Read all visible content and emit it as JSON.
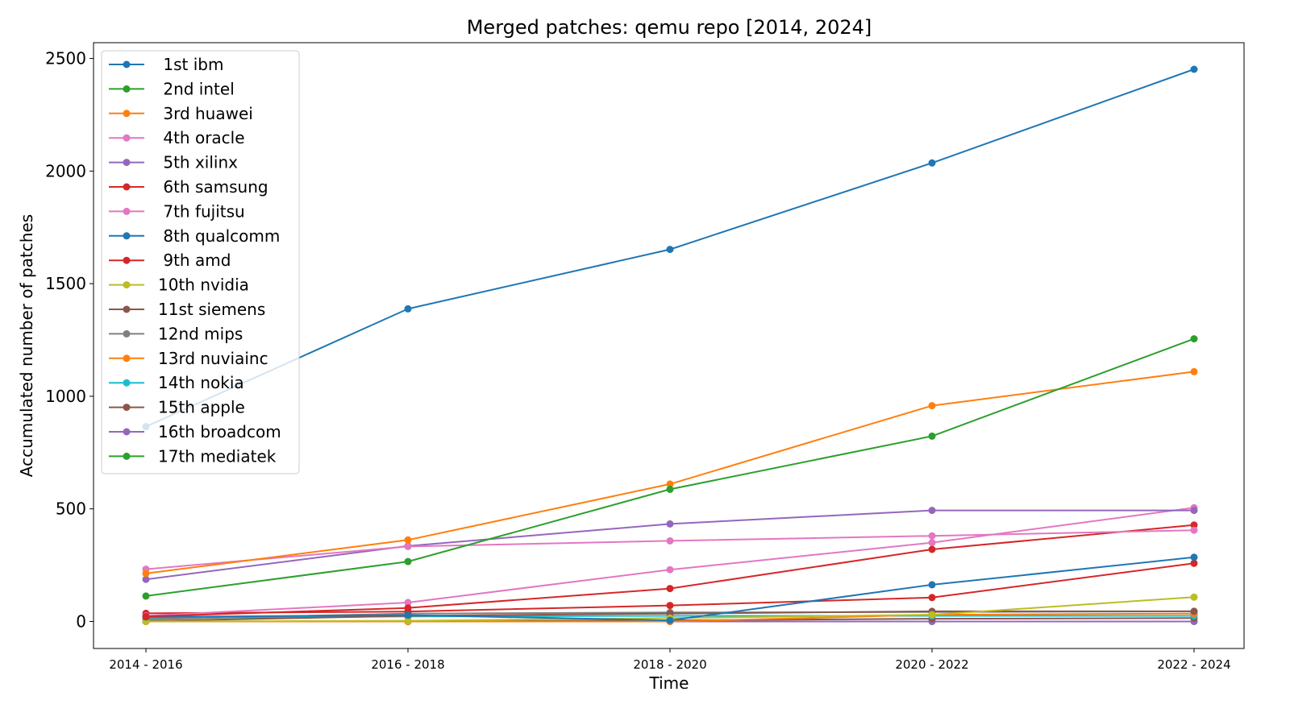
{
  "chart_data": {
    "type": "line",
    "title": "Merged patches: qemu repo [2014, 2024]",
    "xlabel": "Time",
    "ylabel": "Accumulated number of patches",
    "categories": [
      "2014 - 2016",
      "2016 - 2018",
      "2018 - 2020",
      "2020 - 2022",
      "2022 - 2024"
    ],
    "ylim": [
      -120,
      2570
    ],
    "yticks": [
      0,
      500,
      1000,
      1500,
      2000,
      2500
    ],
    "grid": false,
    "legend_position": "upper-left",
    "series": [
      {
        "name": " 1st ibm",
        "color": "#1f77b4",
        "values": [
          865,
          1388,
          1652,
          2036,
          2452
        ]
      },
      {
        "name": " 2nd intel",
        "color": "#2ca02c",
        "values": [
          113,
          266,
          587,
          823,
          1255
        ]
      },
      {
        "name": " 3rd huawei",
        "color": "#ff7f0e",
        "values": [
          213,
          362,
          610,
          958,
          1109
        ]
      },
      {
        "name": " 4th oracle",
        "color": "#e377c2",
        "values": [
          232,
          333,
          358,
          380,
          405
        ]
      },
      {
        "name": " 5th xilinx",
        "color": "#9467bd",
        "values": [
          187,
          335,
          433,
          493,
          493
        ]
      },
      {
        "name": " 6th samsung",
        "color": "#d62728",
        "values": [
          22,
          60,
          146,
          320,
          428
        ]
      },
      {
        "name": " 7th fujitsu",
        "color": "#e377c2",
        "values": [
          25,
          84,
          230,
          350,
          505
        ]
      },
      {
        "name": " 8th qualcomm",
        "color": "#1f77b4",
        "values": [
          20,
          28,
          5,
          163,
          285
        ]
      },
      {
        "name": " 9th amd",
        "color": "#d62728",
        "values": [
          36,
          44,
          71,
          106,
          258
        ]
      },
      {
        "name": "10th nvidia",
        "color": "#bcbd22",
        "values": [
          0,
          3,
          15,
          30,
          108
        ]
      },
      {
        "name": "11st siemens",
        "color": "#8c564b",
        "values": [
          2,
          25,
          35,
          45,
          45
        ]
      },
      {
        "name": "12nd mips",
        "color": "#7f7f7f",
        "values": [
          10,
          35,
          40,
          42,
          45
        ]
      },
      {
        "name": "13rd nuviainc",
        "color": "#ff7f0e",
        "values": [
          0,
          0,
          0,
          30,
          35
        ]
      },
      {
        "name": "14th nokia",
        "color": "#17becf",
        "values": [
          15,
          22,
          25,
          25,
          25
        ]
      },
      {
        "name": "15th apple",
        "color": "#8c564b",
        "values": [
          0,
          0,
          5,
          12,
          15
        ]
      },
      {
        "name": "16th broadcom",
        "color": "#9467bd",
        "values": [
          0,
          0,
          0,
          0,
          0
        ]
      },
      {
        "name": "17th mediatek",
        "color": "#2ca02c",
        "values": [
          0,
          0,
          0,
          0,
          0
        ]
      }
    ]
  }
}
